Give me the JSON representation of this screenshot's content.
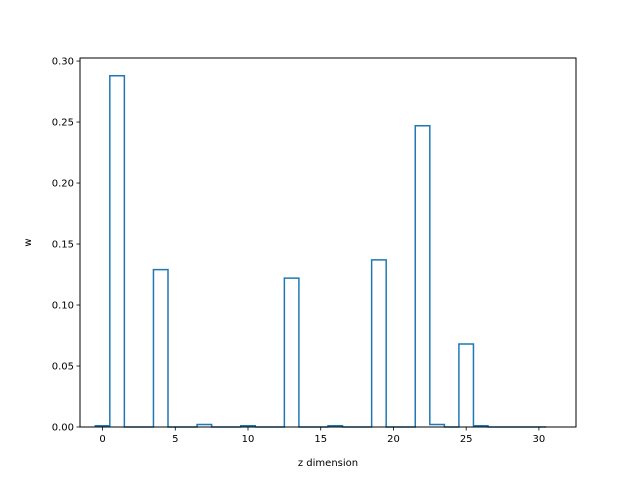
{
  "chart_data": {
    "type": "bar",
    "style": "step-outline",
    "title": "",
    "xlabel": "z dimension",
    "ylabel": "w",
    "xlim": [
      -1.55,
      32.55
    ],
    "ylim": [
      0,
      0.3025
    ],
    "x_ticks": [
      0,
      5,
      10,
      15,
      20,
      25,
      30
    ],
    "y_ticks": [
      0.0,
      0.05,
      0.1,
      0.15,
      0.2,
      0.25,
      0.3
    ],
    "y_tick_labels": [
      "0.00",
      "0.05",
      "0.10",
      "0.15",
      "0.20",
      "0.25",
      "0.30"
    ],
    "grid": false,
    "bar_color": "#1f77b4",
    "x": [
      0,
      1,
      2,
      3,
      4,
      5,
      6,
      7,
      8,
      9,
      10,
      11,
      12,
      13,
      14,
      15,
      16,
      17,
      18,
      19,
      20,
      21,
      22,
      23,
      24,
      25,
      26,
      27,
      28,
      29,
      30
    ],
    "values": [
      0.001,
      0.288,
      0,
      0,
      0.129,
      0,
      0,
      0.002,
      0,
      0,
      0.001,
      0,
      0,
      0.122,
      0,
      0,
      0.001,
      0,
      0,
      0.137,
      0,
      0,
      0.247,
      0.002,
      0,
      0.068,
      0.001,
      0,
      0,
      0,
      0
    ]
  }
}
